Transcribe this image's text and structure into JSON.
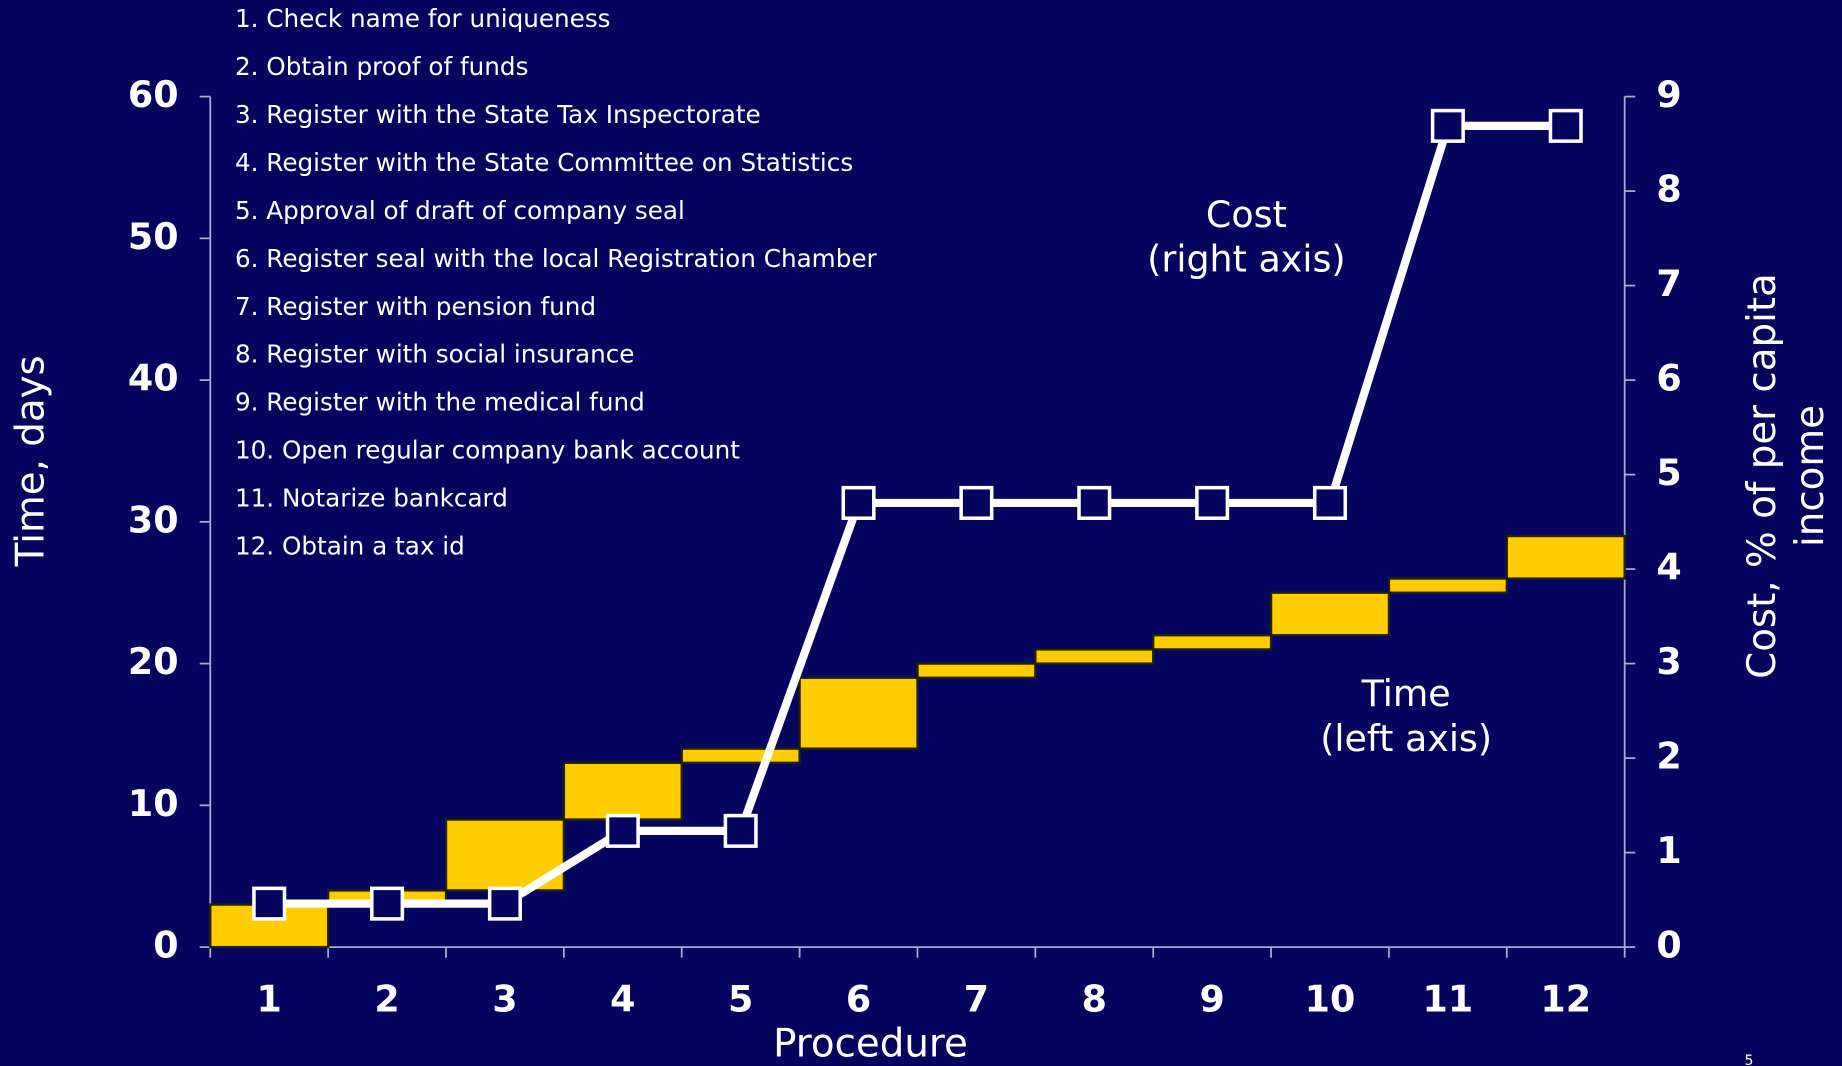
{
  "chart_data": {
    "type": "waterfall-line",
    "categories": [
      "1",
      "2",
      "3",
      "4",
      "5",
      "6",
      "7",
      "8",
      "9",
      "10",
      "11",
      "12"
    ],
    "xlabel": "Procedure",
    "ylabel": "Time, days",
    "y2label": [
      "Cost, % of per capita",
      "income"
    ],
    "procedures": [
      "1. Check name for uniqueness",
      "2. Obtain proof of funds",
      "3. Register with the State Tax Inspectorate",
      "4. Register with the State Committee on Statistics",
      "5. Approval of draft of company seal",
      "6. Register seal with the local Registration Chamber",
      "7. Register with pension fund",
      "8. Register with social insurance",
      "9. Register with the medical fund",
      "10. Open regular company bank account",
      "11. Notarize bankcard",
      "12. Obtain a tax id"
    ],
    "series": [
      {
        "name": "Time",
        "kind": "bar",
        "color": "#ffcc00",
        "values": [
          3,
          1,
          5,
          4,
          1,
          5,
          1,
          1,
          1,
          3,
          1,
          3
        ]
      },
      {
        "name": "Cost",
        "kind": "line",
        "axis": "y2",
        "color": "#ffffff",
        "values": [
          0.46,
          0.46,
          0.46,
          1.23,
          1.23,
          4.7,
          4.7,
          4.7,
          4.7,
          4.7,
          8.69,
          8.69
        ]
      }
    ],
    "annotations": [
      {
        "lines": [
          "Cost",
          "(right axis)"
        ]
      },
      {
        "lines": [
          "Time",
          "(left axis)"
        ]
      }
    ],
    "ylim": [
      0,
      60
    ],
    "yticks": [
      0,
      10,
      20,
      30,
      40,
      50,
      60
    ],
    "y2lim": [
      0,
      9
    ],
    "y2ticks": [
      0,
      1,
      2,
      3,
      4,
      5,
      6,
      7,
      8,
      9
    ],
    "page_number": "5"
  }
}
